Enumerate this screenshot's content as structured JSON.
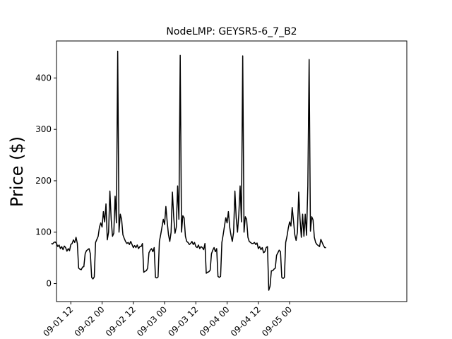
{
  "chart_data": {
    "type": "line",
    "title": "NodeLMP: GEYSR5-6_7_B2",
    "xlabel": "",
    "ylabel": "Price ($)",
    "x_unit": "hour",
    "x_start": "09-01 00",
    "xlim": [
      6.5,
      141
    ],
    "ylim": [
      -35,
      472
    ],
    "yticks": [
      0,
      100,
      200,
      300,
      400
    ],
    "xticks": [
      {
        "x": 12,
        "label": "09-01 12"
      },
      {
        "x": 24,
        "label": "09-02 00"
      },
      {
        "x": 36,
        "label": "09-02 12"
      },
      {
        "x": 48,
        "label": "09-03 00"
      },
      {
        "x": 60,
        "label": "09-03 12"
      },
      {
        "x": 72,
        "label": "09-04 00"
      },
      {
        "x": 84,
        "label": "09-04 12"
      },
      {
        "x": 96,
        "label": "09-05 00"
      }
    ],
    "grid": false,
    "legend": "none",
    "series": [
      {
        "color": "#000000",
        "points": [
          [
            4.5,
            78
          ],
          [
            5,
            77
          ],
          [
            5.5,
            80
          ],
          [
            6,
            81
          ],
          [
            6.5,
            78
          ],
          [
            7,
            72
          ],
          [
            7.5,
            75
          ],
          [
            8,
            68
          ],
          [
            8.5,
            72
          ],
          [
            9,
            66
          ],
          [
            9.5,
            73
          ],
          [
            10,
            70
          ],
          [
            10.5,
            63
          ],
          [
            11,
            68
          ],
          [
            11.5,
            64
          ],
          [
            12,
            76
          ],
          [
            12.5,
            78
          ],
          [
            13,
            85
          ],
          [
            13.5,
            80
          ],
          [
            14,
            90
          ],
          [
            14.5,
            78
          ],
          [
            15,
            30
          ],
          [
            15.5,
            28
          ],
          [
            16,
            27
          ],
          [
            16.5,
            32
          ],
          [
            17,
            33
          ],
          [
            17.5,
            58
          ],
          [
            18,
            64
          ],
          [
            18.5,
            66
          ],
          [
            19,
            68
          ],
          [
            19.5,
            58
          ],
          [
            20,
            12
          ],
          [
            20.5,
            9
          ],
          [
            21,
            13
          ],
          [
            21.5,
            80
          ],
          [
            22,
            86
          ],
          [
            22.5,
            92
          ],
          [
            23,
            110
          ],
          [
            23.5,
            118
          ],
          [
            24,
            110
          ],
          [
            24.5,
            140
          ],
          [
            25,
            120
          ],
          [
            25.5,
            155
          ],
          [
            26,
            85
          ],
          [
            26.5,
            100
          ],
          [
            27,
            180
          ],
          [
            27.5,
            125
          ],
          [
            28,
            92
          ],
          [
            28.5,
            98
          ],
          [
            29,
            170
          ],
          [
            29.5,
            118
          ],
          [
            30,
            452
          ],
          [
            30.5,
            100
          ],
          [
            31,
            135
          ],
          [
            31.5,
            125
          ],
          [
            32,
            95
          ],
          [
            32.5,
            88
          ],
          [
            33,
            82
          ],
          [
            33.5,
            78
          ],
          [
            34,
            80
          ],
          [
            34.5,
            76
          ],
          [
            35,
            82
          ],
          [
            35.5,
            76
          ],
          [
            36,
            70
          ],
          [
            36.5,
            74
          ],
          [
            37,
            70
          ],
          [
            37.5,
            75
          ],
          [
            38,
            68
          ],
          [
            38.5,
            72
          ],
          [
            39,
            72
          ],
          [
            39.5,
            78
          ],
          [
            40,
            22
          ],
          [
            40.5,
            24
          ],
          [
            41,
            25
          ],
          [
            41.5,
            30
          ],
          [
            42,
            60
          ],
          [
            42.5,
            65
          ],
          [
            43,
            68
          ],
          [
            43.5,
            62
          ],
          [
            44,
            70
          ],
          [
            44.5,
            12
          ],
          [
            45,
            11
          ],
          [
            45.5,
            13
          ],
          [
            46,
            82
          ],
          [
            46.5,
            95
          ],
          [
            47,
            110
          ],
          [
            47.5,
            125
          ],
          [
            48,
            115
          ],
          [
            48.5,
            150
          ],
          [
            49,
            120
          ],
          [
            49.5,
            95
          ],
          [
            50,
            82
          ],
          [
            50.5,
            100
          ],
          [
            51,
            178
          ],
          [
            51.5,
            130
          ],
          [
            52,
            98
          ],
          [
            52.5,
            110
          ],
          [
            53,
            190
          ],
          [
            53.5,
            125
          ],
          [
            54,
            444
          ],
          [
            54.5,
            100
          ],
          [
            55,
            132
          ],
          [
            55.5,
            128
          ],
          [
            56,
            92
          ],
          [
            56.5,
            82
          ],
          [
            57,
            80
          ],
          [
            57.5,
            76
          ],
          [
            58,
            78
          ],
          [
            58.5,
            82
          ],
          [
            59,
            76
          ],
          [
            59.5,
            80
          ],
          [
            60,
            72
          ],
          [
            60.5,
            70
          ],
          [
            61,
            75
          ],
          [
            61.5,
            68
          ],
          [
            62,
            72
          ],
          [
            62.5,
            70
          ],
          [
            63,
            66
          ],
          [
            63.5,
            78
          ],
          [
            64,
            20
          ],
          [
            64.5,
            22
          ],
          [
            65,
            23
          ],
          [
            65.5,
            26
          ],
          [
            66,
            58
          ],
          [
            66.5,
            65
          ],
          [
            67,
            70
          ],
          [
            67.5,
            62
          ],
          [
            68,
            68
          ],
          [
            68.5,
            14
          ],
          [
            69,
            12
          ],
          [
            69.5,
            14
          ],
          [
            70,
            80
          ],
          [
            70.5,
            95
          ],
          [
            71,
            112
          ],
          [
            71.5,
            128
          ],
          [
            72,
            118
          ],
          [
            72.5,
            140
          ],
          [
            73,
            110
          ],
          [
            73.5,
            94
          ],
          [
            74,
            82
          ],
          [
            74.5,
            100
          ],
          [
            75,
            180
          ],
          [
            75.5,
            128
          ],
          [
            76,
            100
          ],
          [
            76.5,
            135
          ],
          [
            77,
            190
          ],
          [
            77.5,
            120
          ],
          [
            78,
            443
          ],
          [
            78.5,
            100
          ],
          [
            79,
            130
          ],
          [
            79.5,
            125
          ],
          [
            80,
            90
          ],
          [
            80.5,
            82
          ],
          [
            81,
            80
          ],
          [
            81.5,
            78
          ],
          [
            82,
            78
          ],
          [
            82.5,
            80
          ],
          [
            83,
            76
          ],
          [
            83.5,
            79
          ],
          [
            84,
            68
          ],
          [
            84.5,
            72
          ],
          [
            85,
            66
          ],
          [
            85.5,
            70
          ],
          [
            86,
            60
          ],
          [
            86.5,
            62
          ],
          [
            87,
            70
          ],
          [
            87.5,
            72
          ],
          [
            88,
            -13
          ],
          [
            88.5,
            -5
          ],
          [
            89,
            25
          ],
          [
            89.5,
            25
          ],
          [
            90,
            28
          ],
          [
            90.5,
            30
          ],
          [
            91,
            55
          ],
          [
            91.5,
            60
          ],
          [
            92,
            65
          ],
          [
            92.5,
            62
          ],
          [
            93,
            12
          ],
          [
            93.5,
            10
          ],
          [
            94,
            12
          ],
          [
            94.5,
            80
          ],
          [
            95,
            92
          ],
          [
            95.5,
            108
          ],
          [
            96,
            120
          ],
          [
            96.5,
            112
          ],
          [
            97,
            148
          ],
          [
            97.5,
            122
          ],
          [
            98,
            95
          ],
          [
            98.5,
            84
          ],
          [
            99,
            100
          ],
          [
            99.5,
            178
          ],
          [
            100,
            126
          ],
          [
            100.5,
            90
          ],
          [
            101,
            135
          ],
          [
            101.5,
            92
          ],
          [
            102,
            135
          ],
          [
            102.5,
            94
          ],
          [
            103,
            190
          ],
          [
            103.5,
            436
          ],
          [
            104,
            102
          ],
          [
            104.5,
            130
          ],
          [
            105,
            124
          ],
          [
            105.5,
            90
          ],
          [
            106,
            80
          ],
          [
            106.5,
            76
          ],
          [
            107,
            74
          ],
          [
            107.5,
            72
          ],
          [
            108,
            86
          ],
          [
            108.5,
            80
          ],
          [
            109,
            74
          ],
          [
            109.5,
            70
          ],
          [
            110,
            70
          ]
        ]
      }
    ]
  }
}
